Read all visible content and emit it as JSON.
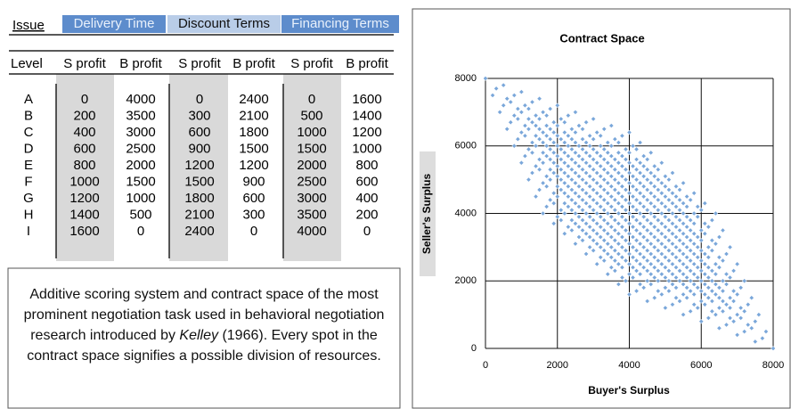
{
  "table": {
    "corner": "Issue",
    "issues": [
      "Delivery Time",
      "Discount Terms",
      "Financing Terms"
    ],
    "columns": [
      "Level",
      "S profit",
      "B profit",
      "S profit",
      "B profit",
      "S profit",
      "B profit"
    ],
    "rows": [
      {
        "level": "A",
        "cells": [
          0,
          4000,
          0,
          2400,
          0,
          1600
        ]
      },
      {
        "level": "B",
        "cells": [
          200,
          3500,
          300,
          2100,
          500,
          1400
        ]
      },
      {
        "level": "C",
        "cells": [
          400,
          3000,
          600,
          1800,
          1000,
          1200
        ]
      },
      {
        "level": "D",
        "cells": [
          600,
          2500,
          900,
          1500,
          1500,
          1000
        ]
      },
      {
        "level": "E",
        "cells": [
          800,
          2000,
          1200,
          1200,
          2000,
          800
        ]
      },
      {
        "level": "F",
        "cells": [
          1000,
          1500,
          1500,
          900,
          2500,
          600
        ]
      },
      {
        "level": "G",
        "cells": [
          1200,
          1000,
          1800,
          600,
          3000,
          400
        ]
      },
      {
        "level": "H",
        "cells": [
          1400,
          500,
          2100,
          300,
          3500,
          200
        ]
      },
      {
        "level": "I",
        "cells": [
          1600,
          0,
          2400,
          0,
          4000,
          0
        ]
      }
    ]
  },
  "caption": {
    "before": "Additive scoring system and contract space of the most prominent negotiation task used in behavioral negotiation research introduced by ",
    "author": "Kelley",
    "after": " (1966). Every spot in the contract space signifies a possible division of resources."
  },
  "chart_data": {
    "type": "scatter",
    "title": "Contract Space",
    "xlabel": "Buyer's Surplus",
    "ylabel": "Seller's Surplus",
    "color": "#7aa7da",
    "xlim": [
      0,
      8000
    ],
    "ylim": [
      0,
      8000
    ],
    "xticks": [
      0,
      2000,
      4000,
      6000,
      8000
    ],
    "yticks": [
      0,
      2000,
      4000,
      6000,
      8000
    ],
    "grid": true
  }
}
